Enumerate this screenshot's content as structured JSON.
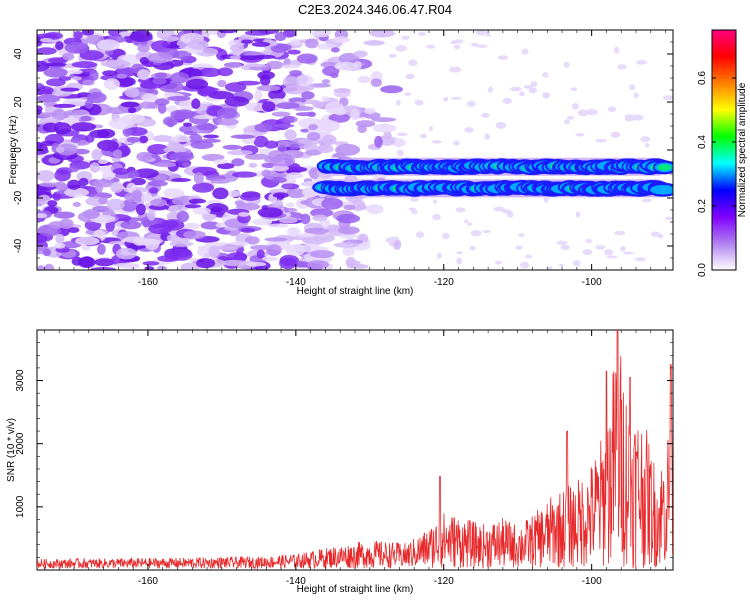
{
  "title": "C2E3.2024.346.06.47.R04",
  "chart_data": [
    {
      "type": "heatmap",
      "xlabel": "Height of straight line (km)",
      "ylabel": "Frequency (Hz)",
      "xlim": [
        -175,
        -89
      ],
      "ylim": [
        -50,
        50
      ],
      "xticks": [
        -160,
        -140,
        -120,
        -100
      ],
      "yticks": [
        -40,
        -20,
        0,
        20,
        40
      ],
      "colorbar": {
        "label": "Normalized spectral amplitude",
        "range": [
          0,
          0.75
        ],
        "ticks": [
          0.0,
          0.2,
          0.4,
          0.6
        ],
        "tick_labels": [
          "0.0",
          "0.2",
          "0.4",
          "0.6"
        ],
        "colors": [
          "#ffffff",
          "#b080f0",
          "#8000ff",
          "#0000ff",
          "#00ffff",
          "#00ff00",
          "#ffff00",
          "#ff8000",
          "#ff0000",
          "#ff0080"
        ]
      },
      "features": [
        {
          "kind": "noise",
          "x_range": [
            -175,
            -136
          ],
          "y_range": [
            -50,
            50
          ],
          "amplitude": 0.05
        },
        {
          "kind": "line",
          "x_range": [
            -136,
            -90
          ],
          "y": -7,
          "amplitude": 0.45
        },
        {
          "kind": "line",
          "x_range": [
            -136,
            -90
          ],
          "y": -16,
          "amplitude": 0.3
        }
      ]
    },
    {
      "type": "line",
      "xlabel": "Height of straight line (km)",
      "ylabel": "SNR (10 * v/v)",
      "xlim": [
        -175,
        -89
      ],
      "ylim": [
        0,
        3800
      ],
      "xticks": [
        -160,
        -140,
        -120,
        -100
      ],
      "yticks": [
        1000,
        2000,
        3000
      ],
      "color": "#e8292b",
      "envelope": [
        {
          "x": -175,
          "y": 150
        },
        {
          "x": -165,
          "y": 160
        },
        {
          "x": -155,
          "y": 170
        },
        {
          "x": -145,
          "y": 190
        },
        {
          "x": -140,
          "y": 230
        },
        {
          "x": -135,
          "y": 350
        },
        {
          "x": -130,
          "y": 450
        },
        {
          "x": -125,
          "y": 400
        },
        {
          "x": -122,
          "y": 650
        },
        {
          "x": -120,
          "y": 900
        },
        {
          "x": -118,
          "y": 850
        },
        {
          "x": -115,
          "y": 700
        },
        {
          "x": -112,
          "y": 800
        },
        {
          "x": -110,
          "y": 700
        },
        {
          "x": -108,
          "y": 850
        },
        {
          "x": -105,
          "y": 1200
        },
        {
          "x": -102,
          "y": 1400
        },
        {
          "x": -100,
          "y": 1700
        },
        {
          "x": -98,
          "y": 2300
        },
        {
          "x": -96.5,
          "y": 3800
        },
        {
          "x": -95,
          "y": 2700
        },
        {
          "x": -93,
          "y": 2400
        },
        {
          "x": -91,
          "y": 1500
        },
        {
          "x": -89,
          "y": 2600
        }
      ],
      "peaks": [
        {
          "x": -120.5,
          "y": 1480
        },
        {
          "x": -103.3,
          "y": 2200
        },
        {
          "x": -96.5,
          "y": 3800
        },
        {
          "x": -98.0,
          "y": 3150
        },
        {
          "x": -94.8,
          "y": 3050
        },
        {
          "x": -89.3,
          "y": 3250
        }
      ]
    }
  ]
}
